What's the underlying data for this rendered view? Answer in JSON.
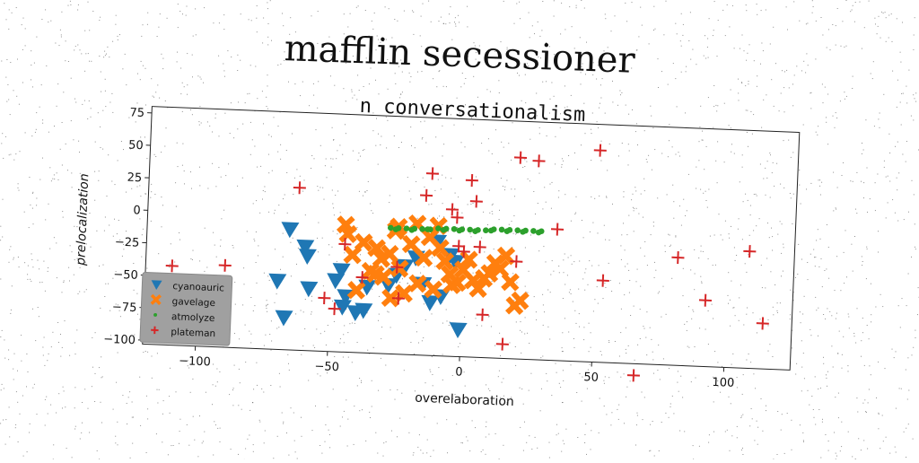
{
  "suptitle": "mafflin secessioner",
  "colors": {
    "cyanoauric": "#1f77b4",
    "gavelage": "#ff7f0e",
    "atmolyze": "#2ca02c",
    "plateman": "#d62728",
    "legend_bg": "#a0a0a0"
  },
  "chart_data": {
    "type": "scatter",
    "title": "n conversationalism",
    "xlabel": "overelaboration",
    "ylabel": "prelocalization",
    "xlim": [
      -120,
      125
    ],
    "ylim": [
      -103,
      80
    ],
    "xticks": [
      -100,
      -50,
      0,
      50,
      100
    ],
    "yticks": [
      -100,
      -75,
      -50,
      -25,
      0,
      25,
      50,
      75
    ],
    "xtick_labels": [
      "−100",
      "−50",
      "0",
      "50",
      "100"
    ],
    "ytick_labels": [
      "−100",
      "−75",
      "−50",
      "−25",
      "0",
      "25",
      "50",
      "75"
    ],
    "grid": false,
    "legend_position": "lower-left",
    "series": [
      {
        "name": "cyanoauric",
        "marker": "triangle-down",
        "points": [
          [
            -66,
            -10
          ],
          [
            -60,
            -23
          ],
          [
            -59,
            -30
          ],
          [
            -58,
            -55
          ],
          [
            -48,
            -48
          ],
          [
            -46,
            -40
          ],
          [
            -44,
            -60
          ],
          [
            -45,
            -68
          ],
          [
            -40,
            -72
          ],
          [
            -37,
            -70
          ],
          [
            -70,
            -50
          ],
          [
            -67,
            -78
          ],
          [
            -36,
            -52
          ],
          [
            -28,
            -50
          ],
          [
            -25,
            -42
          ],
          [
            -22,
            -35
          ],
          [
            -18,
            -28
          ],
          [
            -15,
            -48
          ],
          [
            -12,
            -62
          ],
          [
            -8,
            -57
          ],
          [
            -5,
            -25
          ],
          [
            -10,
            -15
          ],
          [
            -3,
            -30
          ],
          [
            -1,
            -82
          ]
        ]
      },
      {
        "name": "gavelage",
        "marker": "x",
        "points": [
          [
            -45,
            -5
          ],
          [
            -44,
            -12
          ],
          [
            -42,
            -28
          ],
          [
            -40,
            -55
          ],
          [
            -38,
            -18
          ],
          [
            -35,
            -40
          ],
          [
            -33,
            -22
          ],
          [
            -31,
            -30
          ],
          [
            -30,
            -44
          ],
          [
            -28,
            -26
          ],
          [
            -26,
            -8
          ],
          [
            -24,
            -37
          ],
          [
            -22,
            -56
          ],
          [
            -20,
            -18
          ],
          [
            -17,
            -48
          ],
          [
            -15,
            -28
          ],
          [
            -13,
            -12
          ],
          [
            -11,
            -52
          ],
          [
            -9,
            -20
          ],
          [
            -7,
            -30
          ],
          [
            -5,
            -40
          ],
          [
            -4,
            -48
          ],
          [
            -2,
            -46
          ],
          [
            0,
            -36
          ],
          [
            2,
            -28
          ],
          [
            4,
            -44
          ],
          [
            6,
            -50
          ],
          [
            8,
            -42
          ],
          [
            10,
            -38
          ],
          [
            12,
            -30
          ],
          [
            14,
            -34
          ],
          [
            16,
            -24
          ],
          [
            18,
            -44
          ],
          [
            20,
            -62
          ],
          [
            22,
            -58
          ],
          [
            -10,
            -3
          ],
          [
            -18,
            -2
          ],
          [
            -25,
            -5
          ],
          [
            -33,
            -42
          ],
          [
            -27,
            -60
          ]
        ]
      },
      {
        "name": "atmolyze",
        "marker": "circle",
        "points": [
          [
            -28,
            -6
          ],
          [
            -25,
            -6
          ],
          [
            -22,
            -6
          ],
          [
            -19,
            -6
          ],
          [
            -16,
            -6
          ],
          [
            -13,
            -6
          ],
          [
            -10,
            -5
          ],
          [
            -7,
            -5
          ],
          [
            -4,
            -5
          ],
          [
            -1,
            -5
          ],
          [
            2,
            -5
          ],
          [
            5,
            -5
          ],
          [
            8,
            -5
          ],
          [
            11,
            -4
          ],
          [
            14,
            -4
          ],
          [
            17,
            -4
          ],
          [
            20,
            -4
          ],
          [
            23,
            -4
          ],
          [
            26,
            -4
          ],
          [
            29,
            -4
          ],
          [
            -26,
            -7
          ],
          [
            -20,
            -7
          ],
          [
            -14,
            -6
          ],
          [
            -8,
            -6
          ],
          [
            -2,
            -6
          ],
          [
            4,
            -6
          ],
          [
            10,
            -5
          ],
          [
            16,
            -5
          ],
          [
            22,
            -5
          ],
          [
            28,
            -5
          ]
        ]
      },
      {
        "name": "plateman",
        "marker": "plus",
        "points": [
          [
            -110,
            -42
          ],
          [
            -97,
            -54
          ],
          [
            -90,
            -40
          ],
          [
            -63,
            22
          ],
          [
            -52,
            -62
          ],
          [
            -48,
            -70
          ],
          [
            -45,
            -20
          ],
          [
            -38,
            -45
          ],
          [
            -25,
            -36
          ],
          [
            -24,
            -60
          ],
          [
            -15,
            20
          ],
          [
            -13,
            37
          ],
          [
            -5,
            10
          ],
          [
            -3,
            4
          ],
          [
            -2,
            -18
          ],
          [
            0,
            -22
          ],
          [
            2,
            33
          ],
          [
            4,
            17
          ],
          [
            6,
            -18
          ],
          [
            8,
            -70
          ],
          [
            16,
            -92
          ],
          [
            20,
            -28
          ],
          [
            20,
            52
          ],
          [
            27,
            50
          ],
          [
            35,
            -2
          ],
          [
            50,
            60
          ],
          [
            53,
            -40
          ],
          [
            66,
            -112
          ],
          [
            81,
            -20
          ],
          [
            92,
            -52
          ],
          [
            108,
            -13
          ],
          [
            114,
            -68
          ]
        ]
      }
    ]
  }
}
